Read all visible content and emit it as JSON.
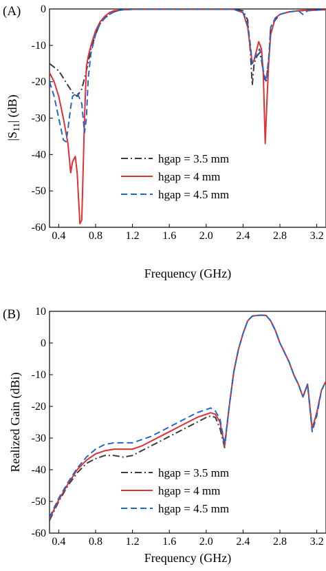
{
  "chart_data": [
    {
      "type": "line",
      "panel_label": "(A)",
      "xlabel": "Frequency (GHz)",
      "ylabel_prefix": "|S",
      "ylabel_sub": "11",
      "ylabel_suffix": "| (dB)",
      "xlim": [
        0.3,
        3.3
      ],
      "ylim": [
        -60,
        0
      ],
      "xticks": [
        0.4,
        0.8,
        1.2,
        1.6,
        2.0,
        2.4,
        2.8,
        3.2
      ],
      "xtick_labels": [
        "0.4",
        "0.8",
        "1.2",
        "1.6",
        "2.0",
        "2.4",
        "2.8",
        "3.2"
      ],
      "yticks": [
        0,
        -10,
        -20,
        -30,
        -40,
        -50,
        -60
      ],
      "ytick_labels": [
        "0",
        "-10",
        "-20",
        "-30",
        "-40",
        "-50",
        "-60"
      ],
      "legend_position": "center-right",
      "series": [
        {
          "name": "hgap = 3.5 mm",
          "color": "#3a3a3a",
          "dash": "dash-dot",
          "x": [
            0.3,
            0.4,
            0.5,
            0.55,
            0.6,
            0.65,
            0.7,
            0.75,
            0.8,
            0.85,
            0.9,
            0.95,
            1.0,
            1.05,
            1.1,
            1.2,
            1.5,
            2.0,
            2.3,
            2.4,
            2.45,
            2.48,
            2.5,
            2.52,
            2.55,
            2.58,
            2.6,
            2.63,
            2.65,
            2.68,
            2.7,
            2.75,
            2.8,
            2.9,
            3.0,
            3.1,
            3.2,
            3.3
          ],
          "y": [
            -15,
            -17,
            -21,
            -23,
            -24,
            -22,
            -17,
            -11,
            -7,
            -4,
            -2.5,
            -1.5,
            -0.8,
            -0.4,
            -0.2,
            -0.1,
            -0.1,
            -0.1,
            -0.1,
            -0.5,
            -3,
            -12,
            -21,
            -15,
            -13,
            -12,
            -14,
            -19,
            -20,
            -14,
            -5,
            -3,
            -1.5,
            -0.8,
            -0.5,
            -0.4,
            -0.3,
            -0.2
          ]
        },
        {
          "name": "hgap = 4 mm",
          "color": "#e03030",
          "dash": "solid",
          "x": [
            0.3,
            0.35,
            0.4,
            0.45,
            0.5,
            0.53,
            0.55,
            0.58,
            0.6,
            0.63,
            0.65,
            0.68,
            0.7,
            0.72,
            0.75,
            0.8,
            0.85,
            0.9,
            0.95,
            1.0,
            1.1,
            1.2,
            1.5,
            2.0,
            2.3,
            2.4,
            2.45,
            2.48,
            2.5,
            2.52,
            2.55,
            2.57,
            2.6,
            2.62,
            2.64,
            2.66,
            2.68,
            2.7,
            2.75,
            2.8,
            2.9,
            3.0,
            3.1,
            3.2,
            3.3
          ],
          "y": [
            -17.5,
            -20,
            -24,
            -30,
            -37,
            -45,
            -42,
            -40.5,
            -45,
            -59,
            -58,
            -30,
            -16,
            -13,
            -10,
            -6,
            -3.5,
            -2,
            -1,
            -0.5,
            -0.2,
            -0.1,
            -0.1,
            -0.1,
            -0.1,
            -1,
            -5,
            -11,
            -15,
            -14,
            -11,
            -9,
            -11,
            -18,
            -37,
            -25,
            -14,
            -7,
            -2.5,
            -1.5,
            -0.8,
            -0.5,
            -0.3,
            -0.3,
            -0.2
          ]
        },
        {
          "name": "hgap = 4.5 mm",
          "color": "#2266cc",
          "dash": "dashed",
          "x": [
            0.3,
            0.35,
            0.4,
            0.45,
            0.48,
            0.5,
            0.53,
            0.55,
            0.6,
            0.65,
            0.68,
            0.7,
            0.72,
            0.75,
            0.8,
            0.85,
            0.9,
            0.95,
            1.0,
            1.05,
            1.1,
            1.2,
            1.5,
            2.0,
            2.3,
            2.4,
            2.45,
            2.48,
            2.5,
            2.52,
            2.55,
            2.58,
            2.6,
            2.62,
            2.65,
            2.68,
            2.7,
            2.75,
            2.8,
            2.9,
            3.0,
            3.05,
            3.1,
            3.2,
            3.3
          ],
          "y": [
            -20,
            -24,
            -30,
            -36,
            -36.5,
            -33,
            -27,
            -24,
            -23,
            -26,
            -34,
            -30,
            -19,
            -12,
            -7,
            -4,
            -2.5,
            -1.5,
            -0.8,
            -0.4,
            -0.2,
            -0.1,
            -0.1,
            -0.1,
            -0.1,
            -1,
            -4,
            -10,
            -15,
            -14,
            -12,
            -11,
            -13,
            -17,
            -20,
            -13,
            -5,
            -2.5,
            -1.5,
            -0.8,
            -0.5,
            -1.5,
            -0.5,
            -0.3,
            -0.2
          ]
        }
      ]
    },
    {
      "type": "line",
      "panel_label": "(B)",
      "xlabel": "Frequency (GHz)",
      "ylabel": "Realized Gain (dBi)",
      "xlim": [
        0.3,
        3.3
      ],
      "ylim": [
        -60,
        10
      ],
      "xticks": [
        0.4,
        0.8,
        1.2,
        1.6,
        2.0,
        2.4,
        2.8,
        3.2
      ],
      "xtick_labels": [
        "0.4",
        "0.8",
        "1.2",
        "1.6",
        "2.0",
        "2.4",
        "2.8",
        "3.2"
      ],
      "yticks": [
        10,
        0,
        -10,
        -20,
        -30,
        -40,
        -50,
        -60
      ],
      "ytick_labels": [
        "10",
        "0",
        "-10",
        "-20",
        "-30",
        "-40",
        "-50",
        "-60"
      ],
      "legend_position": "bottom-center",
      "series": [
        {
          "name": "hgap = 3.5 mm",
          "color": "#3a3a3a",
          "dash": "dash-dot",
          "x": [
            0.3,
            0.4,
            0.5,
            0.6,
            0.7,
            0.8,
            0.9,
            1.0,
            1.1,
            1.2,
            1.3,
            1.4,
            1.5,
            1.6,
            1.7,
            1.8,
            1.9,
            2.0,
            2.05,
            2.1,
            2.15,
            2.2,
            2.25,
            2.3,
            2.35,
            2.4,
            2.45,
            2.5,
            2.55,
            2.6,
            2.65,
            2.7,
            2.75,
            2.8,
            2.85,
            2.9,
            2.95,
            3.0,
            3.05,
            3.1,
            3.15,
            3.2,
            3.25,
            3.3
          ],
          "y": [
            -56,
            -50,
            -45,
            -41,
            -38,
            -36.5,
            -35.5,
            -35.5,
            -36,
            -35.5,
            -34,
            -32.5,
            -31,
            -29.5,
            -28,
            -26.5,
            -25,
            -23.5,
            -23,
            -23.5,
            -27,
            -33,
            -20,
            -9,
            -2,
            3,
            7,
            8.5,
            8.7,
            8.8,
            8.7,
            7,
            4,
            0,
            -3,
            -6,
            -10,
            -13,
            -17,
            -13,
            -27,
            -22,
            -15,
            -12
          ]
        },
        {
          "name": "hgap = 4 mm",
          "color": "#e03030",
          "dash": "solid",
          "x": [
            0.3,
            0.4,
            0.5,
            0.6,
            0.7,
            0.8,
            0.9,
            1.0,
            1.1,
            1.2,
            1.3,
            1.4,
            1.5,
            1.6,
            1.7,
            1.8,
            1.9,
            2.0,
            2.05,
            2.1,
            2.15,
            2.2,
            2.25,
            2.3,
            2.35,
            2.4,
            2.45,
            2.5,
            2.55,
            2.6,
            2.65,
            2.7,
            2.75,
            2.8,
            2.85,
            2.9,
            2.95,
            3.0,
            3.05,
            3.1,
            3.15,
            3.2,
            3.25,
            3.3
          ],
          "y": [
            -55.5,
            -49.5,
            -44.5,
            -40,
            -37,
            -35,
            -34,
            -33.5,
            -33.5,
            -33.5,
            -32.5,
            -31,
            -29.5,
            -28,
            -26.5,
            -25,
            -23.5,
            -22.5,
            -22,
            -22.5,
            -25,
            -32.5,
            -20,
            -9,
            -2,
            3,
            7,
            8.5,
            8.7,
            8.8,
            8.7,
            7,
            4,
            0,
            -3,
            -6,
            -10,
            -13,
            -17,
            -13,
            -27,
            -22,
            -15,
            -12
          ]
        },
        {
          "name": "hgap = 4.5 mm",
          "color": "#2266cc",
          "dash": "dashed",
          "x": [
            0.3,
            0.4,
            0.5,
            0.6,
            0.7,
            0.8,
            0.9,
            1.0,
            1.1,
            1.2,
            1.3,
            1.4,
            1.5,
            1.6,
            1.7,
            1.8,
            1.9,
            2.0,
            2.05,
            2.1,
            2.15,
            2.2,
            2.25,
            2.3,
            2.35,
            2.4,
            2.45,
            2.5,
            2.55,
            2.6,
            2.65,
            2.7,
            2.75,
            2.8,
            2.85,
            2.9,
            2.95,
            3.0,
            3.05,
            3.1,
            3.15,
            3.2,
            3.25,
            3.3
          ],
          "y": [
            -55,
            -49,
            -44,
            -39.5,
            -36,
            -33.5,
            -32,
            -31.5,
            -31.5,
            -31.5,
            -30.5,
            -29.5,
            -28,
            -26.5,
            -25,
            -23.5,
            -22,
            -21,
            -20.5,
            -21.5,
            -24,
            -32,
            -20,
            -9,
            -2,
            3,
            7,
            8.5,
            8.7,
            8.8,
            8.7,
            7,
            4,
            0,
            -3,
            -6,
            -10,
            -13,
            -17,
            -13,
            -28,
            -23,
            -15,
            -12
          ]
        }
      ]
    }
  ]
}
